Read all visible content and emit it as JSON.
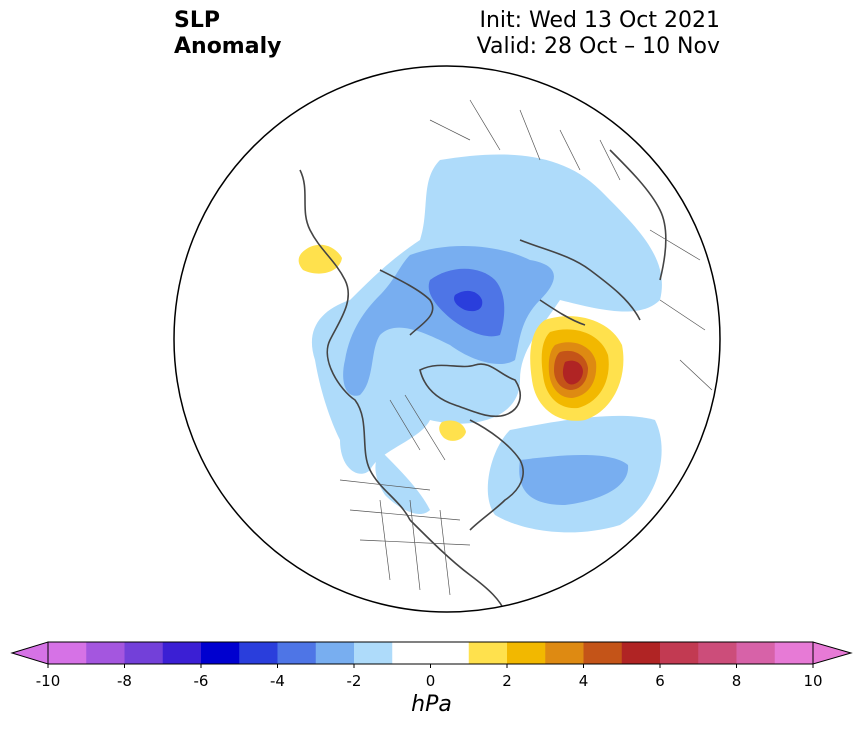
{
  "title": {
    "line1": "SLP",
    "line2": "Anomaly"
  },
  "subtitle": {
    "init": "Init: Wed 13 Oct 2021",
    "valid": "Valid: 28 Oct – 10 Nov"
  },
  "colorbar": {
    "units": "hPa",
    "ticks": [
      "-10",
      "-8",
      "-6",
      "-4",
      "-2",
      "0",
      "2",
      "4",
      "6",
      "8",
      "10"
    ],
    "colors": [
      "#d672e6",
      "#a456df",
      "#7340d9",
      "#3b1fd4",
      "#0000cf",
      "#2a3edc",
      "#4e75e6",
      "#78aef0",
      "#aedbfa",
      "#ffffff",
      "#ffffff",
      "#ffe14d",
      "#f2b800",
      "#de8a12",
      "#c45418",
      "#b02424",
      "#c23a52",
      "#cc4d7a",
      "#d762a8",
      "#e77ad6"
    ]
  },
  "anomalies": [
    {
      "name": "low-north-atlantic-arctic",
      "value_hpa": -5,
      "color": "#2a3edc"
    },
    {
      "name": "high-siberia",
      "value_hpa": 6,
      "color": "#b02424"
    },
    {
      "name": "low-north-pacific",
      "value_hpa": -3,
      "color": "#78aef0"
    }
  ]
}
